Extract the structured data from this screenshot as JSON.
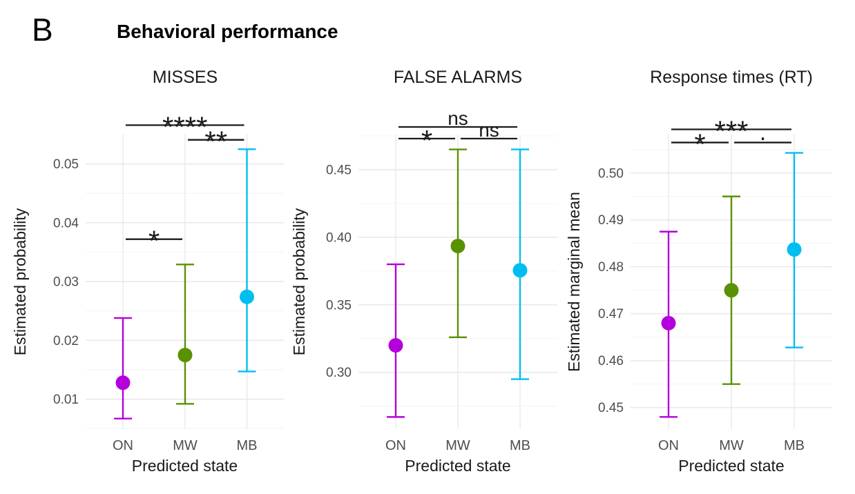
{
  "figure": {
    "panel_label": "B",
    "title": "Behavioral performance"
  },
  "state_colors": {
    "ON": "#B400DC",
    "MW": "#5A9100",
    "MB": "#00BFF0"
  },
  "chart_data": [
    {
      "type": "pointrange",
      "title": "MISSES",
      "xlabel": "Predicted state",
      "ylabel": "Estimated probability",
      "categories": [
        "ON",
        "MW",
        "MB"
      ],
      "series": [
        {
          "name": "ON",
          "mean": 0.0128,
          "ci_low": 0.0067,
          "ci_high": 0.0238,
          "color": "#B400DC"
        },
        {
          "name": "MW",
          "mean": 0.0175,
          "ci_low": 0.0092,
          "ci_high": 0.0329,
          "color": "#5A9100"
        },
        {
          "name": "MB",
          "mean": 0.0274,
          "ci_low": 0.0147,
          "ci_high": 0.0525,
          "color": "#00BFF0"
        }
      ],
      "yticks": [
        0.01,
        0.02,
        0.03,
        0.04,
        0.05
      ],
      "ytick_labels": [
        "0.01",
        "0.02",
        "0.03",
        "0.04",
        "0.05"
      ],
      "ylim": [
        0.0049,
        0.055
      ],
      "grid": true,
      "legend": "none",
      "significance": [
        {
          "group1": "ON",
          "group2": "MB",
          "label": "****",
          "y": 0.0566
        },
        {
          "group1": "MW",
          "group2": "MB",
          "label": "**",
          "y": 0.0541
        },
        {
          "group1": "ON",
          "group2": "MW",
          "label": "*",
          "y": 0.0372
        }
      ]
    },
    {
      "type": "pointrange",
      "title": "FALSE ALARMS",
      "xlabel": "Predicted state",
      "ylabel": "Estimated probability",
      "categories": [
        "ON",
        "MW",
        "MB"
      ],
      "series": [
        {
          "name": "ON",
          "mean": 0.32,
          "ci_low": 0.267,
          "ci_high": 0.38,
          "color": "#B400DC"
        },
        {
          "name": "MW",
          "mean": 0.3935,
          "ci_low": 0.326,
          "ci_high": 0.465,
          "color": "#5A9100"
        },
        {
          "name": "MB",
          "mean": 0.3755,
          "ci_low": 0.295,
          "ci_high": 0.465,
          "color": "#00BFF0"
        }
      ],
      "yticks": [
        0.3,
        0.35,
        0.4,
        0.45
      ],
      "ytick_labels": [
        "0.30",
        "0.35",
        "0.40",
        "0.45"
      ],
      "ylim": [
        0.258,
        0.476
      ],
      "grid": true,
      "legend": "none",
      "significance": [
        {
          "group1": "ON",
          "group2": "MB",
          "label": "ns",
          "y": 0.4816
        },
        {
          "group1": "ON",
          "group2": "MW",
          "label": "*",
          "y": 0.473
        },
        {
          "group1": "MW",
          "group2": "MB",
          "label": "ns",
          "y": 0.473
        }
      ]
    },
    {
      "type": "pointrange",
      "title": "Response times (RT)",
      "xlabel": "Predicted state",
      "ylabel": "Estimated marginal mean",
      "categories": [
        "ON",
        "MW",
        "MB"
      ],
      "series": [
        {
          "name": "ON",
          "mean": 0.468,
          "ci_low": 0.448,
          "ci_high": 0.4875,
          "color": "#B400DC"
        },
        {
          "name": "MW",
          "mean": 0.475,
          "ci_low": 0.455,
          "ci_high": 0.495,
          "color": "#5A9100"
        },
        {
          "name": "MB",
          "mean": 0.4837,
          "ci_low": 0.4628,
          "ci_high": 0.5043,
          "color": "#00BFF0"
        }
      ],
      "yticks": [
        0.45,
        0.46,
        0.47,
        0.48,
        0.49,
        0.5
      ],
      "ytick_labels": [
        "0.45",
        "0.46",
        "0.47",
        "0.48",
        "0.49",
        "0.50"
      ],
      "ylim": [
        0.4454,
        0.5082
      ],
      "grid": true,
      "legend": "none",
      "significance": [
        {
          "group1": "ON",
          "group2": "MB",
          "label": "***",
          "y": 0.5093
        },
        {
          "group1": "ON",
          "group2": "MW",
          "label": "*",
          "y": 0.5065
        },
        {
          "group1": "MW",
          "group2": "MB",
          "label": "·",
          "y": 0.5065
        }
      ]
    }
  ]
}
